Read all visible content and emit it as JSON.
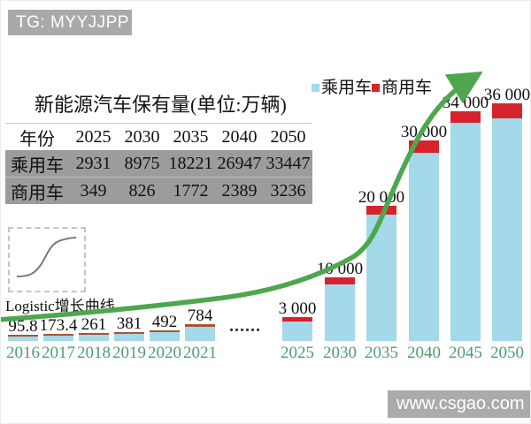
{
  "watermarks": {
    "top_left": "TG: MYYJJPP",
    "bottom_right": "www.csgao.com"
  },
  "title": "新能源汽车保有量(单位:万辆)",
  "legend": {
    "items": [
      {
        "label": "乘用车",
        "color": "#a4d9ea",
        "icon": "passenger-car-swatch"
      },
      {
        "label": "商用车",
        "color": "#d5232e",
        "icon": "commercial-car-swatch"
      }
    ]
  },
  "table": {
    "header": [
      "年份",
      "2025",
      "2030",
      "2035",
      "2040",
      "2050"
    ],
    "rows": [
      [
        "乘用车",
        "2931",
        "8975",
        "18221",
        "26947",
        "33447"
      ],
      [
        "商用车",
        "349",
        "826",
        "1772",
        "2389",
        "3236"
      ]
    ]
  },
  "inset": {
    "label": "Logistic增长曲线"
  },
  "ellipsis": "......",
  "chart_data": {
    "type": "bar",
    "stacked": true,
    "title": "新能源汽车保有量(单位:万辆)",
    "unit": "万辆",
    "categories": [
      "2016",
      "2017",
      "2018",
      "2019",
      "2020",
      "2021",
      "2025",
      "2030",
      "2035",
      "2040",
      "2045",
      "2050"
    ],
    "bar_value_labels": [
      "95.8",
      "173.4",
      "261",
      "381",
      "492",
      "784",
      "3 000",
      "10 000",
      "20 000",
      "30 000",
      "34 000",
      "36 000"
    ],
    "totals": [
      95.8,
      173.4,
      261,
      381,
      492,
      784,
      3000,
      10000,
      20000,
      30000,
      34000,
      36000
    ],
    "series": [
      {
        "name": "乘用车",
        "color": "#a4d9ea",
        "projected_years": [
          2025,
          2030,
          2035,
          2040,
          2050
        ],
        "projected_values": [
          2931,
          8975,
          18221,
          26947,
          33447
        ]
      },
      {
        "name": "商用车",
        "color": "#d5232e",
        "projected_years": [
          2025,
          2030,
          2035,
          2040,
          2050
        ],
        "projected_values": [
          349,
          826,
          1772,
          2389,
          3236
        ]
      }
    ],
    "x_gap_note": "...... between 2021 and 2025",
    "annotation": "Logistic增长曲线",
    "trend_arrow_color": "#4ea64e",
    "xlabel": "",
    "ylabel": "",
    "legend_position": "top-right",
    "grid": false
  }
}
